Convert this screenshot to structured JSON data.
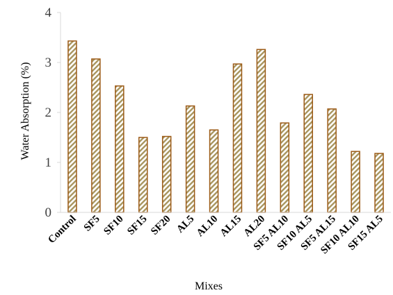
{
  "chart_data": {
    "type": "bar",
    "title": "",
    "xlabel": "Mixes",
    "ylabel": "Water Absorption (%)",
    "ylim": [
      0,
      4
    ],
    "yticks": [
      "0",
      "1",
      "2",
      "3",
      "4"
    ],
    "grid": false,
    "legend": "none",
    "categories": [
      "Control",
      "SF5",
      "SF10",
      "SF15",
      "SF20",
      "AL5",
      "AL10",
      "AL15",
      "AL20",
      "SF5 AL10",
      "SF10 AL5",
      "SF5 AL15",
      "SF10 AL10",
      "SF15 AL5"
    ],
    "values": [
      3.43,
      3.07,
      2.53,
      1.5,
      1.52,
      2.13,
      1.65,
      2.97,
      3.26,
      1.79,
      2.36,
      2.07,
      1.22,
      1.18
    ],
    "colors": {
      "bar_stroke": "#9C5A16",
      "hatch": "#A8955E",
      "axis": "#D9D9D9"
    }
  }
}
